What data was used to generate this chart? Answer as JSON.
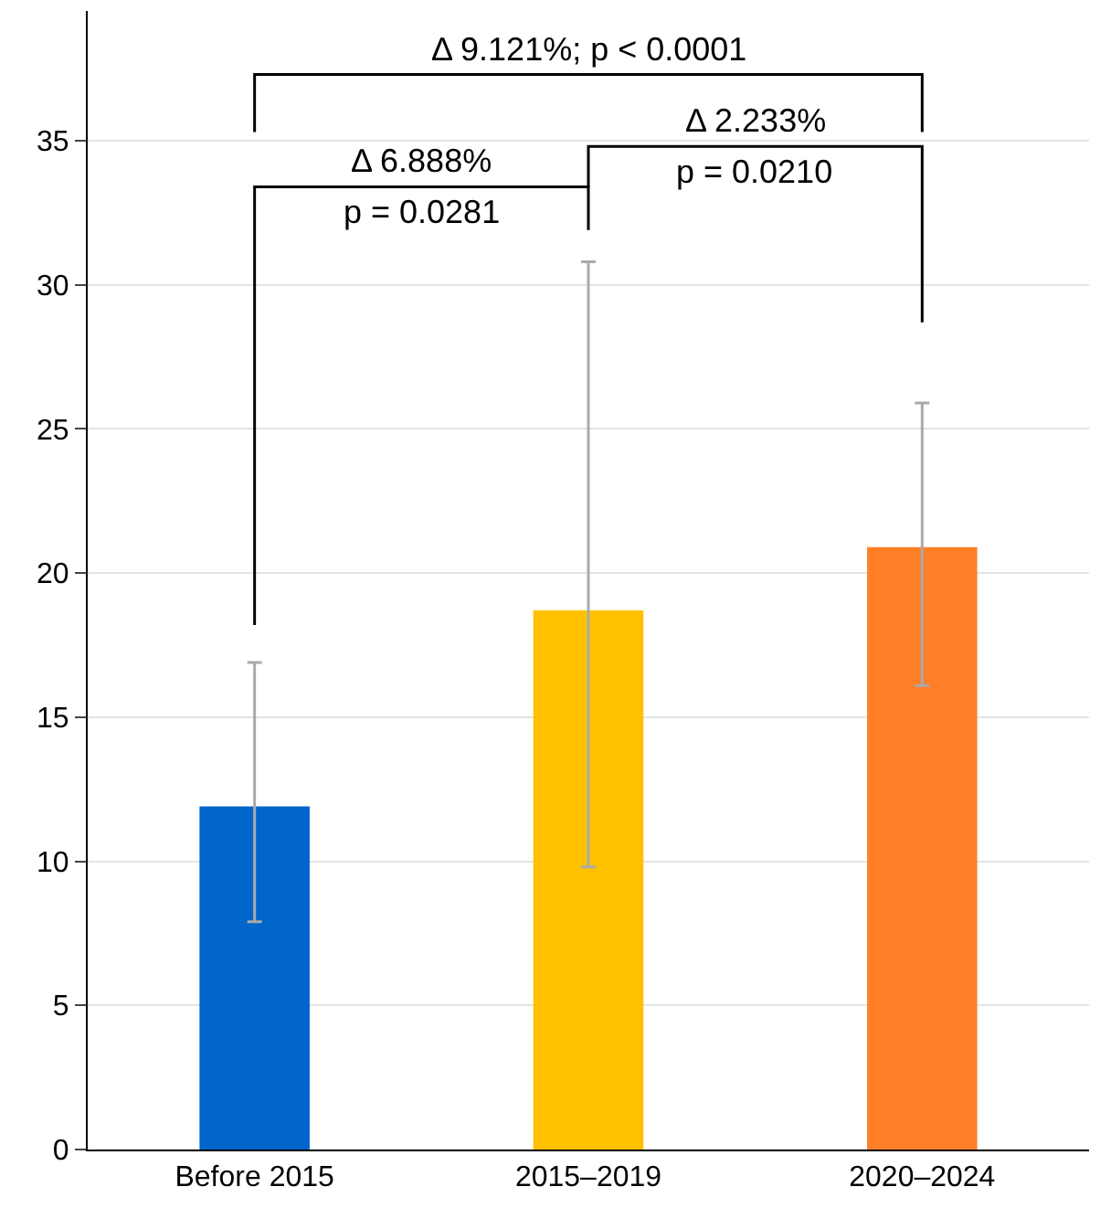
{
  "chart_data": {
    "type": "bar",
    "categories": [
      "Before 2015",
      "2015–2019",
      "2020–2024"
    ],
    "values": [
      11.9,
      18.7,
      20.9
    ],
    "colors": [
      "#0066cc",
      "#ffc000",
      "#ff7f27"
    ],
    "errors": [
      [
        7.9,
        16.9
      ],
      [
        9.8,
        30.8
      ],
      [
        16.1,
        25.9
      ]
    ],
    "ylim": [
      0,
      39.5
    ],
    "yticks": [
      0,
      5,
      10,
      15,
      20,
      25,
      30,
      35
    ],
    "grid": "y",
    "annotations": [
      "Δ 9.121%; p < 0.0001",
      "Δ 6.888%\np = 0.0281",
      "Δ 2.233%\np = 0.0210"
    ]
  }
}
